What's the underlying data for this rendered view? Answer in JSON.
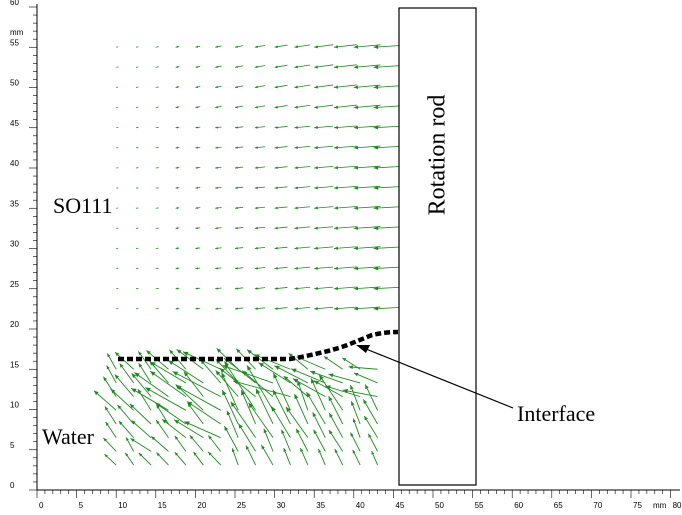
{
  "labels": {
    "fluid_top": "SO111",
    "fluid_bottom": "Water",
    "rod": "Rotation rod",
    "interface": "Interface"
  },
  "axis": {
    "unit": "mm",
    "x_ticks": [
      "0",
      "5",
      "10",
      "15",
      "20",
      "25",
      "30",
      "35",
      "40",
      "45",
      "50",
      "55",
      "60",
      "65",
      "70",
      "75",
      "80"
    ],
    "y_ticks": [
      "0",
      "5",
      "10",
      "15",
      "20",
      "25",
      "30",
      "35",
      "40",
      "45",
      "50",
      "55",
      "60"
    ]
  },
  "colors": {
    "vectors": "#1e8a1e",
    "interface": "#000000",
    "rod_border": "#000000"
  }
}
